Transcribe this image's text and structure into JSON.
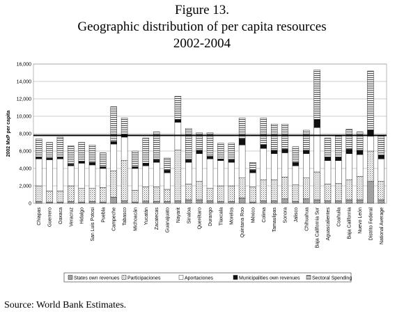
{
  "chart_data": {
    "type": "stacked_bar",
    "title": [
      "Figure 13.",
      "Geographic distribution of per capita resources",
      "2002-2004"
    ],
    "ylabel": "2002 MxP per capita",
    "source": "Source: World Bank Estimates.",
    "categories": [
      "Chiapas",
      "Guerrero",
      "Oaxaca",
      "Veracruz",
      "Hidalgo",
      "San Luis Potosi",
      "Puebla",
      "Campeche",
      "Tabasco",
      "Michoacán",
      "Yucatán",
      "Zacatecas",
      "Guanajuato",
      "Nayarit",
      "Sinaloa",
      "Querétaro",
      "Durango",
      "Tlaxcala",
      "Morelos",
      "Quintana Roo",
      "México",
      "Colima",
      "Tamaulipas",
      "Sonora",
      "Jalisco",
      "Chihuahua",
      "Baja California Sur",
      "Aguascalientes",
      "Coahuila",
      "Baja California",
      "Nuevo León",
      "Distrito Federal",
      "National Average"
    ],
    "series": [
      {
        "name": "States own revenues",
        "color": "#666666",
        "pattern": "dots",
        "values": [
          200,
          150,
          150,
          200,
          150,
          200,
          150,
          700,
          300,
          150,
          250,
          200,
          200,
          300,
          400,
          400,
          300,
          200,
          200,
          600,
          150,
          300,
          300,
          500,
          200,
          500,
          400,
          300,
          300,
          400,
          400,
          2500,
          400
        ]
      },
      {
        "name": "Participaciones",
        "color": "#9a9a9a",
        "pattern": "dots",
        "values": [
          1800,
          1250,
          1250,
          1800,
          1550,
          1500,
          1650,
          3000,
          4600,
          1350,
          1650,
          1700,
          1400,
          5800,
          1800,
          2100,
          1400,
          1800,
          1800,
          2300,
          1750,
          2400,
          2400,
          2500,
          1900,
          2400,
          3200,
          1900,
          2000,
          2300,
          2700,
          3500,
          2100
        ]
      },
      {
        "name": "Aportaciones",
        "color": "#ffffff",
        "pattern": "solid",
        "values": [
          3100,
          3600,
          3700,
          2300,
          2900,
          2700,
          2200,
          3100,
          2700,
          2500,
          2400,
          2800,
          1900,
          3200,
          2500,
          3200,
          3400,
          2900,
          2700,
          3800,
          1600,
          3600,
          3000,
          2800,
          2200,
          2800,
          5100,
          2700,
          2600,
          3000,
          2500,
          1700,
          2600
        ]
      },
      {
        "name": "Municipalities own revenues",
        "color": "#111111",
        "pattern": "solid",
        "values": [
          200,
          200,
          200,
          200,
          200,
          300,
          200,
          300,
          300,
          200,
          300,
          300,
          300,
          300,
          300,
          400,
          300,
          200,
          300,
          700,
          300,
          400,
          400,
          400,
          400,
          400,
          900,
          400,
          400,
          500,
          500,
          700,
          400
        ]
      },
      {
        "name": "Sectoral Spending",
        "color": "#555555",
        "pattern": "stripes",
        "values": [
          2100,
          1800,
          2300,
          2100,
          2200,
          2000,
          1600,
          4000,
          1900,
          1800,
          2900,
          3200,
          1400,
          2700,
          3600,
          2000,
          2700,
          1800,
          1900,
          2400,
          900,
          3100,
          3000,
          2900,
          1800,
          2300,
          5700,
          2200,
          2400,
          2300,
          2100,
          6800,
          2300
        ]
      }
    ],
    "reference_line": 7800,
    "ylim": [
      0,
      16000
    ],
    "yticks": [
      0,
      {
        "value": 2000,
        "label": "2,000"
      },
      {
        "value": 4000,
        "label": "4,000"
      },
      {
        "value": 6000,
        "label": "6,000"
      },
      {
        "value": 8000,
        "label": "8,000"
      },
      {
        "value": 10000,
        "label": "10,000"
      },
      {
        "value": 12000,
        "label": "12,000"
      },
      {
        "value": 14000,
        "label": "14,000"
      },
      {
        "value": 16000,
        "label": "16,000"
      }
    ],
    "grid": true
  }
}
